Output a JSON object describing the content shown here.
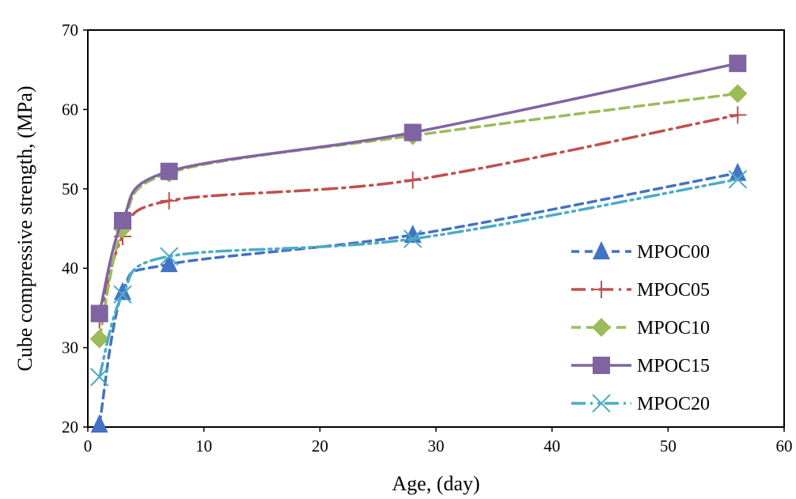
{
  "chart_data": {
    "type": "line",
    "title": "",
    "xlabel": "Age, (day)",
    "ylabel": "Cube compressive strength, (MPa)",
    "xlim": [
      0,
      60
    ],
    "ylim": [
      20,
      70
    ],
    "xticks": [
      "0",
      "10",
      "20",
      "30",
      "40",
      "50",
      "60"
    ],
    "yticks": [
      "20",
      "30",
      "40",
      "50",
      "60",
      "70"
    ],
    "grid": false,
    "legend_position": "right",
    "x": [
      1,
      3,
      7,
      28,
      56
    ],
    "series": [
      {
        "name": "MPOC00",
        "values": [
          20.3,
          37.0,
          40.5,
          44.2,
          52.0
        ],
        "color": "#4472C4",
        "marker": "triangle",
        "dash": "10,7"
      },
      {
        "name": "MPOC05",
        "values": [
          33.5,
          44.0,
          48.5,
          51.1,
          59.3
        ],
        "color": "#C0504D",
        "marker": "plus",
        "dash": "18,7,3,7"
      },
      {
        "name": "MPOC10",
        "values": [
          31.1,
          45.0,
          52.0,
          56.7,
          62.0
        ],
        "color": "#9BBB59",
        "marker": "diamond",
        "dash": "12,7"
      },
      {
        "name": "MPOC15",
        "values": [
          34.3,
          46.0,
          52.2,
          57.1,
          65.8
        ],
        "color": "#8064A2",
        "marker": "square",
        "dash": ""
      },
      {
        "name": "MPOC20",
        "values": [
          26.3,
          36.7,
          41.5,
          43.7,
          51.2
        ],
        "color": "#4BACC6",
        "marker": "x",
        "dash": "18,6,3,6,3,6"
      }
    ]
  }
}
